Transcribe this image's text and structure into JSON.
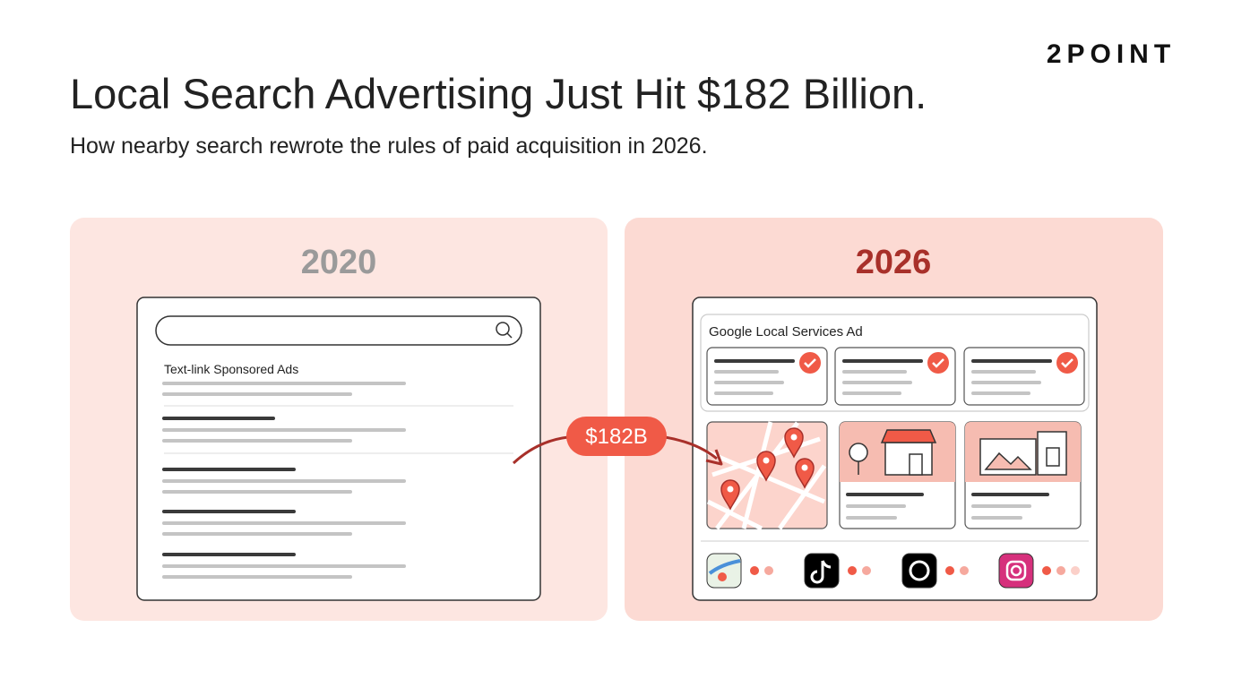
{
  "header": {
    "logo": "2POINT",
    "title": "Local Search Advertising Just Hit $182 Billion.",
    "subtitle": "How nearby search rewrote the rules of paid acquisition in 2026."
  },
  "panels": [
    {
      "year": "2020",
      "label": "Text-link Sponsored Ads"
    },
    {
      "year": "2026",
      "label": "Google Local Services Ad"
    }
  ],
  "connector": {
    "label": "$182B"
  }
}
